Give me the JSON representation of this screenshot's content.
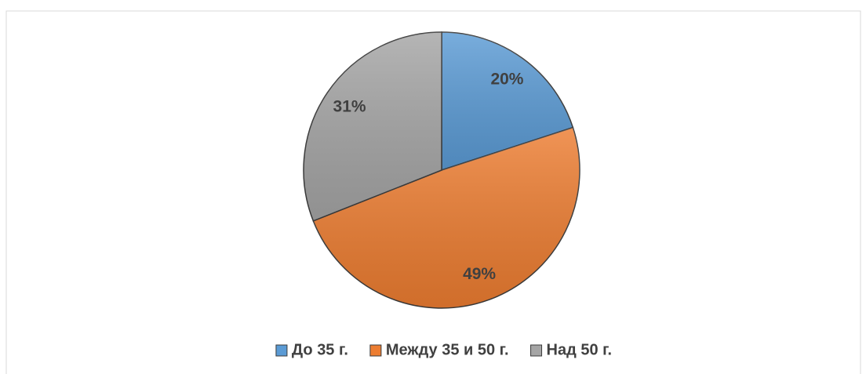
{
  "chart_data": {
    "type": "pie",
    "categories": [
      "До 35 г.",
      "Между 35 и 50 г.",
      "Над 50 г."
    ],
    "values": [
      20,
      49,
      31
    ],
    "value_labels": [
      "20%",
      "49%",
      "31%"
    ],
    "colors": [
      "#5b9bd5",
      "#ed7d31",
      "#a5a5a5"
    ],
    "legend": "bottom"
  }
}
